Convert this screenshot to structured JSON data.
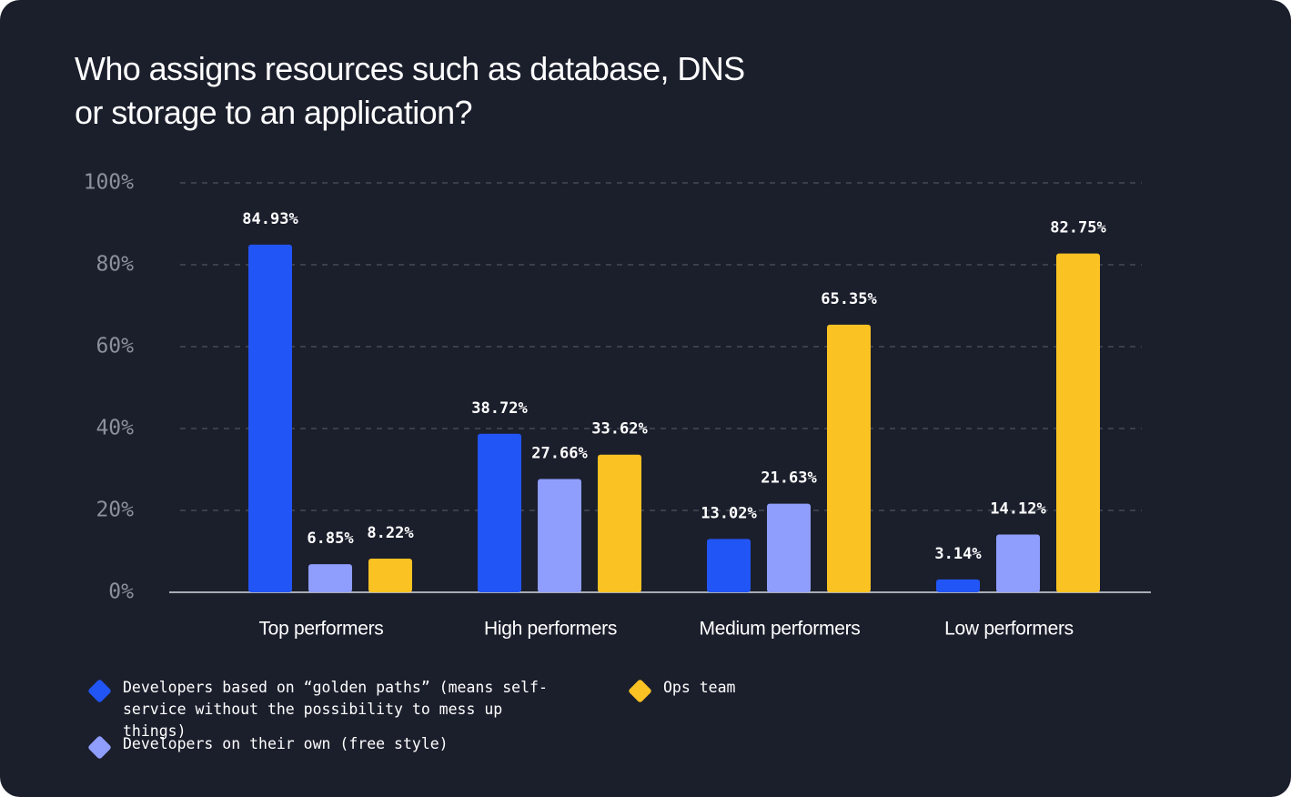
{
  "chart_data": {
    "type": "bar",
    "title": "Who assigns resources such as database, DNS or storage to an application?",
    "categories": [
      "Top performers",
      "High performers",
      "Medium performers",
      "Low performers"
    ],
    "series": [
      {
        "name": "Developers based on “golden paths” (means self-service without the possibility to mess up things)",
        "color": "#2255f5",
        "values": [
          84.93,
          38.72,
          13.02,
          3.14
        ],
        "value_labels": [
          "84.93%",
          "38.72%",
          "13.02%",
          "3.14%"
        ]
      },
      {
        "name": "Developers on their own (free style)",
        "color": "#8f9dfd",
        "values": [
          6.85,
          27.66,
          21.63,
          14.12
        ],
        "value_labels": [
          "6.85%",
          "27.66%",
          "21.63%",
          "14.12%"
        ]
      },
      {
        "name": "Ops team",
        "color": "#fbc223",
        "values": [
          8.22,
          33.62,
          65.35,
          82.75
        ],
        "value_labels": [
          "8.22%",
          "33.62%",
          "65.35%",
          "82.75%"
        ]
      }
    ],
    "ylim": [
      0,
      100
    ],
    "yticks": [
      {
        "value": 0,
        "label": "0%"
      },
      {
        "value": 20,
        "label": "20%"
      },
      {
        "value": 40,
        "label": "40%"
      },
      {
        "value": 60,
        "label": "60%"
      },
      {
        "value": 80,
        "label": "80%"
      },
      {
        "value": 100,
        "label": "100%"
      }
    ],
    "grid": true
  }
}
